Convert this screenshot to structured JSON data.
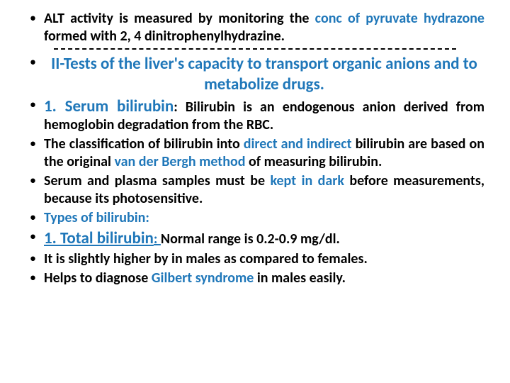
{
  "colors": {
    "text": "#000000",
    "accent": "#1f77b9",
    "background": "#ffffff",
    "divider": "#000000"
  },
  "typography": {
    "base_fontsize_pt": 20,
    "header_fontsize_pt": 23,
    "small_fontsize_pt": 19,
    "font_family": "Calibri, Arial, sans-serif"
  },
  "bullets": [
    {
      "id": "alt",
      "spans": [
        {
          "t": "ALT activity is measured by monitoring the ",
          "cls": "plain bold"
        },
        {
          "t": "conc of ",
          "cls": "blue-bold"
        },
        {
          "t": "pyruvate hydrazone ",
          "cls": "blue-bold"
        },
        {
          "t": "formed with 2, 4 dinitrophenylhydrazine.",
          "cls": "plain bold"
        }
      ]
    },
    {
      "id": "subheader",
      "subheader": true,
      "spans": [
        {
          "t": "II-Tests of the liver's capacity to transport organic anions and to metabolize drugs.",
          "cls": "blue-bold"
        }
      ]
    },
    {
      "id": "serum-bili",
      "spans": [
        {
          "t": "1. Serum bilirubin",
          "cls": "blue-bold",
          "big": true
        },
        {
          "t": ": Bilirubin is an endogenous anion derived from hemoglobin degradation from the RBC.",
          "cls": "plain bold"
        }
      ]
    },
    {
      "id": "classification",
      "spans": [
        {
          "t": "The classification of bilirubin into ",
          "cls": "plain bold"
        },
        {
          "t": "direct and indirect ",
          "cls": "blue-bold"
        },
        {
          "t": "bilirubin are based on the original ",
          "cls": "plain bold"
        },
        {
          "t": "van der Bergh method ",
          "cls": "blue-bold"
        },
        {
          "t": "of measuring bilirubin.",
          "cls": "plain bold"
        }
      ]
    },
    {
      "id": "dark",
      "spans": [
        {
          "t": "Serum and plasma samples must be ",
          "cls": "plain bold"
        },
        {
          "t": "kept in dark ",
          "cls": "blue-bold"
        },
        {
          "t": "before measurements, because its photosensitive.",
          "cls": "plain bold"
        }
      ]
    },
    {
      "id": "types",
      "spans": [
        {
          "t": "Types of bilirubin:",
          "cls": "blue-bold"
        }
      ]
    },
    {
      "id": "total",
      "spans": [
        {
          "t": "1. Total bilirubin",
          "cls": "blue-bold",
          "big": true,
          "ul": true
        },
        {
          "t": ": ",
          "cls": "blue-bold",
          "ul": true
        },
        {
          "t": "Normal range is 0.2-0.9 mg/dl.",
          "cls": "plain bold"
        }
      ]
    },
    {
      "id": "males",
      "spans": [
        {
          "t": "It is slightly higher by in males as compared to females.",
          "cls": "plain bold"
        }
      ]
    },
    {
      "id": "gilbert",
      "spans": [
        {
          "t": "Helps to diagnose ",
          "cls": "plain bold"
        },
        {
          "t": "Gilbert syndrome ",
          "cls": "blue-bold"
        },
        {
          "t": "in males easily.",
          "cls": "plain bold"
        }
      ]
    }
  ]
}
